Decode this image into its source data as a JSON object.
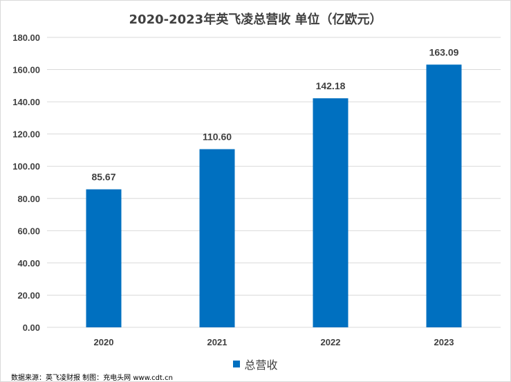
{
  "chart_data": {
    "type": "bar",
    "title": "2020-2023年英飞凌总营收 单位（亿欧元）",
    "categories": [
      "2020",
      "2021",
      "2022",
      "2023"
    ],
    "series": [
      {
        "name": "总营收",
        "values": [
          85.67,
          110.6,
          142.18,
          163.09
        ],
        "labels": [
          "85.67",
          "110.60",
          "142.18",
          "163.09"
        ],
        "color": "#0070c0"
      }
    ],
    "ylim": [
      0,
      180
    ],
    "yticks": [
      "0.00",
      "20.00",
      "40.00",
      "60.00",
      "80.00",
      "100.00",
      "120.00",
      "140.00",
      "160.00",
      "180.00"
    ],
    "ytick_values": [
      0,
      20,
      40,
      60,
      80,
      100,
      120,
      140,
      160,
      180
    ],
    "grid": true,
    "legend_position": "bottom",
    "xlabel": "",
    "ylabel": ""
  },
  "source_note": "数据来源：英飞凌财报 制图：充电头网 www.cdt.cn"
}
